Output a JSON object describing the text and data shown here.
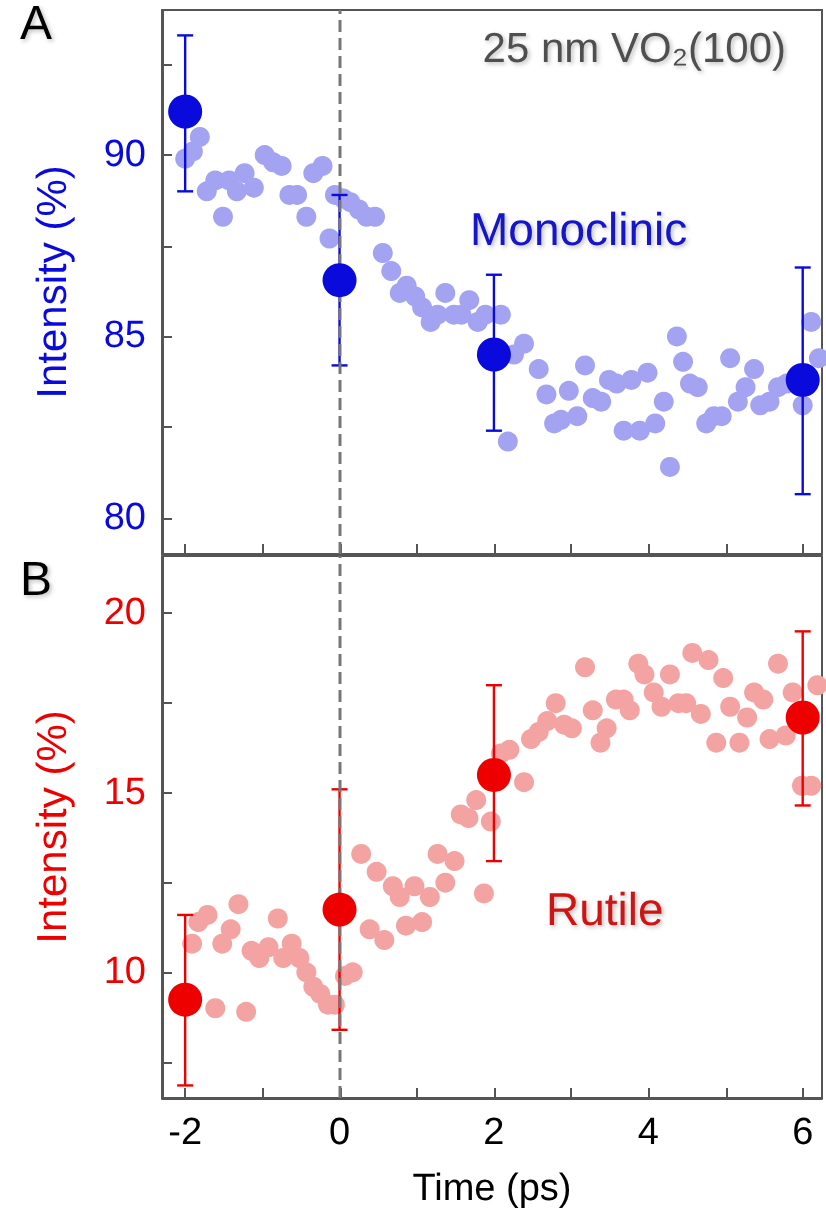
{
  "chart_data": [
    {
      "type": "scatter",
      "ylabel": "Intensity (%)",
      "annotations": [
        "A",
        "25 nm VO₂(100)",
        "Monoclinic"
      ],
      "marker": "circle",
      "tick_labels": "y",
      "xlim": [
        -2.3,
        6.25
      ],
      "ylim": [
        79,
        94
      ],
      "xticks": [
        -2,
        {
          "value": -1,
          "label": null
        },
        0,
        {
          "value": 1,
          "label": null
        },
        2,
        {
          "value": 3,
          "label": null
        },
        4,
        {
          "value": 5,
          "label": null
        },
        6
      ],
      "yticks": [
        80,
        {
          "value": 82.5,
          "label": null
        },
        85,
        {
          "value": 87.5,
          "label": null
        },
        90,
        {
          "value": 92.5,
          "label": null
        }
      ],
      "ref_lines": [
        {
          "axis": "x",
          "value": 0,
          "color": "#777777",
          "line_style": "dashed"
        }
      ],
      "series": [
        {
          "color": "#a3a3f2",
          "x": [
            -2.0,
            -1.9,
            -1.81,
            -1.72,
            -1.61,
            -1.51,
            -1.43,
            -1.33,
            -1.23,
            -1.11,
            -0.97,
            -0.86,
            -0.75,
            -0.65,
            -0.55,
            -0.43,
            -0.34,
            -0.22,
            -0.13,
            -0.06,
            0.05,
            0.14,
            0.25,
            0.35,
            0.46,
            0.56,
            0.67,
            0.78,
            0.87,
            0.98,
            1.07,
            1.18,
            1.27,
            1.37,
            1.48,
            1.58,
            1.68,
            1.79,
            1.89,
            2.09,
            2.18,
            2.26,
            2.39,
            2.58,
            2.68,
            2.78,
            2.87,
            2.97,
            3.08,
            3.18,
            3.28,
            3.39,
            3.49,
            3.59,
            3.68,
            3.78,
            3.89,
            3.99,
            4.09,
            4.2,
            4.28,
            4.37,
            4.45,
            4.54,
            4.64,
            4.75,
            4.85,
            4.95,
            5.06,
            5.16,
            5.26,
            5.37,
            5.45,
            5.57,
            5.68,
            5.79,
            5.9,
            6.0,
            6.11,
            6.21
          ],
          "values": [
            89.9,
            90.1,
            90.5,
            89.0,
            89.3,
            88.3,
            89.3,
            89.0,
            89.5,
            89.1,
            90.0,
            89.8,
            89.7,
            88.9,
            88.9,
            88.3,
            89.5,
            89.7,
            87.7,
            88.9,
            88.8,
            88.7,
            88.5,
            88.3,
            88.3,
            87.3,
            86.8,
            86.2,
            86.4,
            86.1,
            85.8,
            85.4,
            85.6,
            86.2,
            85.6,
            85.6,
            86.0,
            85.4,
            85.6,
            85.6,
            82.1,
            84.5,
            84.8,
            84.1,
            83.4,
            82.6,
            82.7,
            83.5,
            82.8,
            84.2,
            83.3,
            83.2,
            83.8,
            83.7,
            82.4,
            83.8,
            82.4,
            84.0,
            82.6,
            83.2,
            81.4,
            85.0,
            84.3,
            83.7,
            83.6,
            82.6,
            82.8,
            82.8,
            84.4,
            83.2,
            83.6,
            84.1,
            83.1,
            83.2,
            83.6,
            83.7,
            null,
            83.1,
            85.4,
            84.4
          ]
        },
        {
          "color": "#0a0adc",
          "x": [
            -2,
            0,
            2,
            6
          ],
          "values": [
            91.2,
            86.55,
            84.5,
            83.8
          ],
          "errors": [
            [
              89.0,
              93.3
            ],
            [
              84.2,
              88.9
            ],
            [
              82.4,
              86.7
            ],
            [
              80.65,
              86.9
            ]
          ]
        }
      ]
    },
    {
      "type": "scatter",
      "xlabel": "Time (ps)",
      "ylabel": "Intensity (%)",
      "annotations": [
        "B",
        "Rutile"
      ],
      "marker": "circle",
      "xlim": [
        -2.3,
        6.25
      ],
      "ylim": [
        6.5,
        21.6
      ],
      "xticks": [
        -2,
        {
          "value": -1,
          "label": null
        },
        0,
        {
          "value": 1,
          "label": null
        },
        2,
        {
          "value": 3,
          "label": null
        },
        4,
        {
          "value": 5,
          "label": null
        },
        6
      ],
      "yticks": [
        {
          "value": 7.5,
          "label": null
        },
        10,
        {
          "value": 12.5,
          "label": null
        },
        15,
        {
          "value": 17.5,
          "label": null
        },
        20
      ],
      "ref_lines": [
        {
          "axis": "x",
          "value": 0,
          "color": "#777777",
          "line_style": "dashed"
        }
      ],
      "series": [
        {
          "color": "#f4a3a3",
          "x": [
            -1.91,
            -1.83,
            -1.71,
            -1.61,
            -1.52,
            -1.41,
            -1.31,
            -1.21,
            -1.14,
            -1.04,
            -0.92,
            -0.8,
            -0.73,
            -0.62,
            -0.52,
            -0.43,
            -0.34,
            -0.25,
            -0.15,
            -0.06,
            0.07,
            0.17,
            0.28,
            0.39,
            0.48,
            0.58,
            0.69,
            0.78,
            0.86,
            0.97,
            1.07,
            1.17,
            1.27,
            1.37,
            1.49,
            1.57,
            1.67,
            1.77,
            1.87,
            1.96,
            2.09,
            2.2,
            2.39,
            2.48,
            2.58,
            2.69,
            2.8,
            2.91,
            3.01,
            3.18,
            3.28,
            3.38,
            3.46,
            3.58,
            3.68,
            3.76,
            3.87,
            3.95,
            4.07,
            4.17,
            4.28,
            4.39,
            4.49,
            4.57,
            4.68,
            4.78,
            4.88,
            4.97,
            5.06,
            5.18,
            5.28,
            5.37,
            5.49,
            5.57,
            5.68,
            5.78,
            5.87,
            5.99,
            6.11,
            6.19
          ],
          "values": [
            10.8,
            11.4,
            11.6,
            9.0,
            10.8,
            11.2,
            11.9,
            8.9,
            10.6,
            10.4,
            10.7,
            11.5,
            10.4,
            10.8,
            10.4,
            10.0,
            9.6,
            9.4,
            9.1,
            9.1,
            9.9,
            10.0,
            13.3,
            11.2,
            12.8,
            10.9,
            12.4,
            12.1,
            11.3,
            12.4,
            11.4,
            12.1,
            13.3,
            12.5,
            13.1,
            14.4,
            14.3,
            14.8,
            12.2,
            14.2,
            16.1,
            16.2,
            15.3,
            16.5,
            16.7,
            17.0,
            17.5,
            16.9,
            16.8,
            18.5,
            17.3,
            16.4,
            16.8,
            17.6,
            17.6,
            17.3,
            18.6,
            18.3,
            17.8,
            17.4,
            18.3,
            17.5,
            17.5,
            18.9,
            17.2,
            18.7,
            16.4,
            18.2,
            17.4,
            16.4,
            17.1,
            17.8,
            17.6,
            16.5,
            18.6,
            16.6,
            17.8,
            15.2,
            15.2,
            18.0
          ]
        },
        {
          "color": "#ee0000",
          "x": [
            -2,
            0,
            2,
            6
          ],
          "values": [
            9.24,
            11.75,
            15.5,
            17.1
          ],
          "errors": [
            [
              6.85,
              11.6
            ],
            [
              8.4,
              15.1
            ],
            [
              13.1,
              18.0
            ],
            [
              14.65,
              19.5
            ]
          ]
        }
      ]
    }
  ]
}
